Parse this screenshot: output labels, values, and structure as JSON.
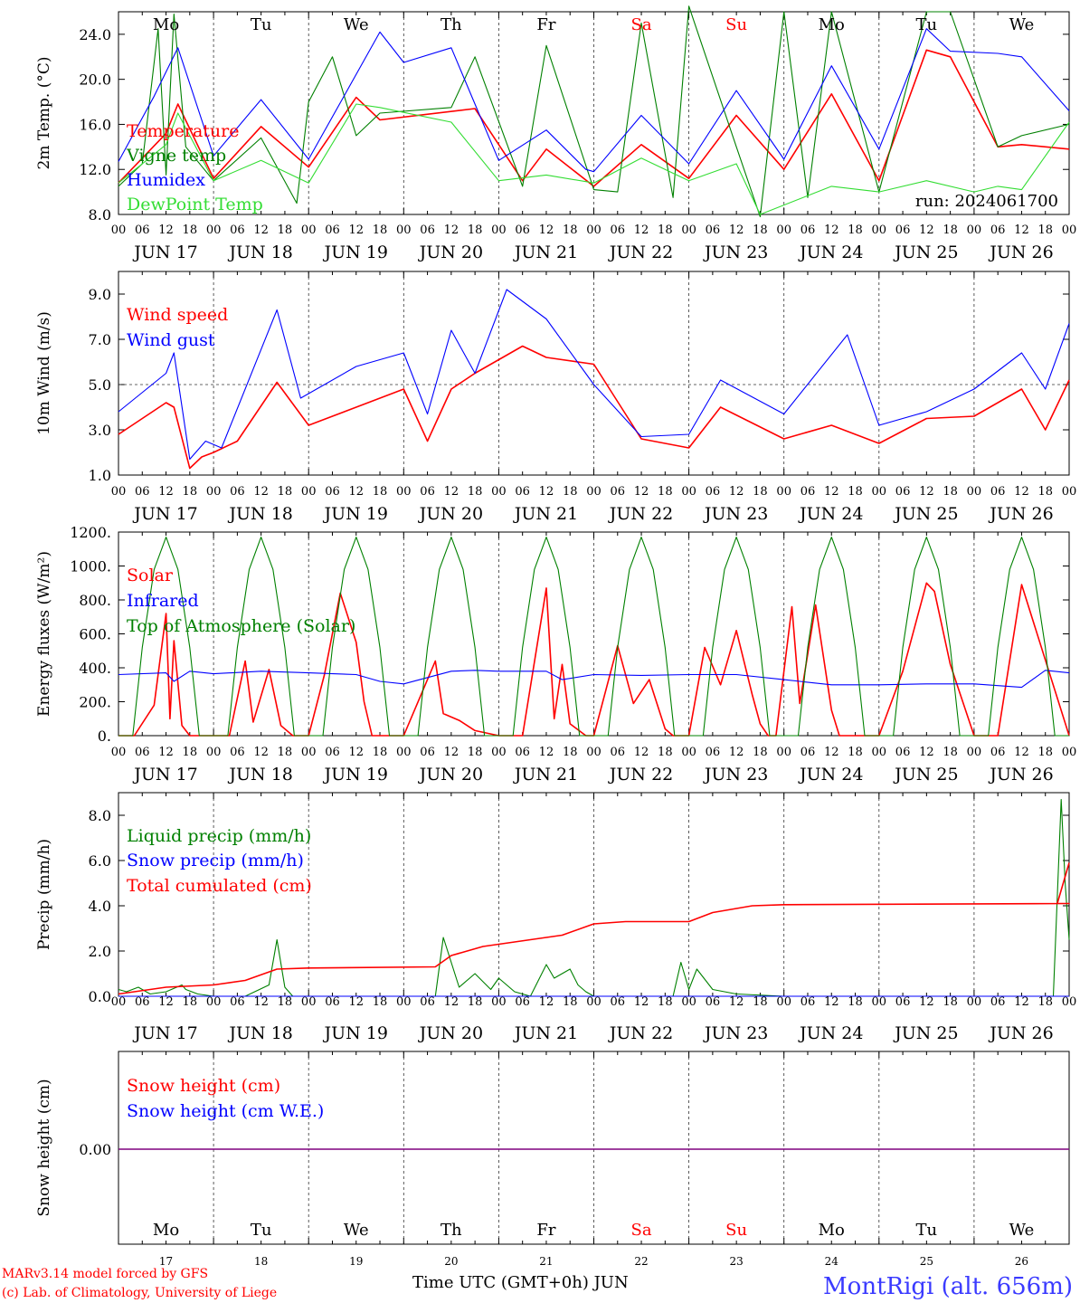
{
  "colors": {
    "red": "#ff0000",
    "green": "#008000",
    "blue": "#0000ff",
    "lightgreen": "#33dd33",
    "purple": "#7f007f",
    "gray": "#555555"
  },
  "days": {
    "dates": [
      "JUN 17",
      "JUN 18",
      "JUN 19",
      "JUN 20",
      "JUN 21",
      "JUN 22",
      "JUN 23",
      "JUN 24",
      "JUN 25",
      "JUN 26"
    ],
    "names": [
      "Mo",
      "Tu",
      "We",
      "Th",
      "Fr",
      "Sa",
      "Su",
      "Mo",
      "Tu",
      "We"
    ],
    "weekend": [
      false,
      false,
      false,
      false,
      false,
      true,
      true,
      false,
      false,
      false
    ],
    "numbers": [
      "17",
      "18",
      "19",
      "20",
      "21",
      "22",
      "23",
      "24",
      "25",
      "26"
    ],
    "hour_ticks": [
      "00",
      "06",
      "12",
      "18"
    ],
    "final_tick": "00"
  },
  "footer": {
    "model": "MARv3.14 model forced by GFS",
    "lab": "(c) Lab. of Climatology, University of Liege",
    "time_label": "Time UTC (GMT+0h) JUN",
    "station": "MontRigi (alt. 656m)"
  },
  "chart_data": [
    {
      "type": "line",
      "ylabel": "2m Temp. (°C)",
      "ylim": [
        8,
        26
      ],
      "yticks": [
        "8.0",
        "12.0",
        "16.0",
        "20.0",
        "24.0"
      ],
      "ytick_values": [
        8,
        12,
        16,
        20,
        24
      ],
      "annotation": "run: 2024061700",
      "grid": "vertical dashed lines at day boundaries",
      "legend_placement": "left",
      "series": [
        {
          "name": "Temperature",
          "color": "red",
          "x_hours": [
            0,
            12,
            15,
            24,
            36,
            48,
            60,
            66,
            90,
            102,
            108,
            120,
            132,
            144,
            156,
            168,
            180,
            192,
            204,
            210,
            222,
            228,
            240
          ],
          "values": [
            10.8,
            15.2,
            17.8,
            11.2,
            15.8,
            12.2,
            18.4,
            16.4,
            17.4,
            11.0,
            13.8,
            10.5,
            14.2,
            11.2,
            16.8,
            12.0,
            18.7,
            11.0,
            22.6,
            22.0,
            14.0,
            14.2,
            13.8
          ]
        },
        {
          "name": "Vigne temp",
          "color": "green",
          "x_hours": [
            0,
            6,
            10,
            12,
            14,
            17,
            24,
            36,
            45,
            48,
            54,
            60,
            66,
            84,
            90,
            102,
            108,
            120,
            126,
            132,
            140,
            144,
            156,
            162,
            168,
            174,
            180,
            192,
            204,
            210,
            222,
            228,
            240
          ],
          "values": [
            10.5,
            12.5,
            24.5,
            11.5,
            25.8,
            14.0,
            11.0,
            14.8,
            9.0,
            18.0,
            22.0,
            15.0,
            17.0,
            17.5,
            22.0,
            10.5,
            23.0,
            10.2,
            10.0,
            25.0,
            9.5,
            26.5,
            14.0,
            7.8,
            26.0,
            9.5,
            26.0,
            10.0,
            26.0,
            26.0,
            14.0,
            15.0,
            16.0
          ]
        },
        {
          "name": "Humidex",
          "color": "blue",
          "x_hours": [
            0,
            9,
            15,
            24,
            36,
            48,
            66,
            72,
            84,
            90,
            96,
            108,
            118,
            120,
            132,
            144,
            156,
            168,
            180,
            192,
            204,
            210,
            222,
            228,
            240
          ],
          "values": [
            12.7,
            18.5,
            22.8,
            13.2,
            18.2,
            12.9,
            24.2,
            21.5,
            22.8,
            17.8,
            12.8,
            15.5,
            12.0,
            11.8,
            16.8,
            12.5,
            19.0,
            12.9,
            21.2,
            13.8,
            24.5,
            22.5,
            22.3,
            22.0,
            17.2
          ]
        },
        {
          "name": "DewPoint Temp",
          "color": "lightgreen",
          "x_hours": [
            0,
            12,
            15,
            24,
            36,
            48,
            60,
            66,
            84,
            96,
            108,
            120,
            132,
            144,
            156,
            162,
            180,
            192,
            204,
            216,
            222,
            228,
            240
          ],
          "values": [
            10.8,
            14.2,
            17.0,
            11.0,
            12.8,
            10.8,
            17.8,
            17.5,
            16.2,
            11.0,
            11.5,
            10.8,
            13.0,
            11.0,
            12.5,
            8.0,
            10.5,
            10.0,
            11.0,
            10.0,
            10.5,
            10.2,
            16.2
          ]
        }
      ]
    },
    {
      "type": "line",
      "ylabel": "10m Wind (m/s)",
      "ylim": [
        1,
        10
      ],
      "yticks": [
        "1.0",
        "3.0",
        "5.0",
        "7.0",
        "9.0"
      ],
      "ytick_values": [
        1,
        3,
        5,
        7,
        9
      ],
      "reference_line": 5.0,
      "legend_placement": "left",
      "series": [
        {
          "name": "Wind speed",
          "color": "red",
          "x_hours": [
            0,
            12,
            14,
            18,
            21,
            24,
            30,
            40,
            48,
            60,
            72,
            78,
            84,
            90,
            102,
            108,
            120,
            132,
            144,
            152,
            168,
            180,
            192,
            204,
            216,
            228,
            234,
            240
          ],
          "values": [
            2.8,
            4.2,
            4.0,
            1.3,
            1.8,
            2.0,
            2.5,
            5.1,
            3.2,
            4.0,
            4.8,
            2.5,
            4.8,
            5.5,
            6.7,
            6.2,
            5.9,
            2.6,
            2.2,
            4.0,
            2.6,
            3.2,
            2.4,
            3.5,
            3.6,
            4.8,
            3.0,
            5.2
          ]
        },
        {
          "name": "Wind gust",
          "color": "blue",
          "x_hours": [
            0,
            12,
            14,
            18,
            22,
            26,
            40,
            46,
            60,
            72,
            78,
            84,
            90,
            98,
            108,
            120,
            132,
            144,
            152,
            168,
            184,
            192,
            204,
            216,
            228,
            234,
            240
          ],
          "values": [
            3.8,
            5.5,
            6.4,
            1.7,
            2.5,
            2.2,
            8.3,
            4.4,
            5.8,
            6.4,
            3.7,
            7.4,
            5.5,
            9.2,
            7.9,
            5.0,
            2.7,
            2.8,
            5.2,
            3.7,
            7.2,
            3.2,
            3.8,
            4.8,
            6.4,
            4.8,
            7.7
          ]
        }
      ]
    },
    {
      "type": "line",
      "ylabel": "Energy fluxes (W/m²)",
      "ylim": [
        0,
        1200
      ],
      "yticks": [
        "0.",
        "200.",
        "400.",
        "600.",
        "800.",
        "1000.",
        "1200."
      ],
      "ytick_values": [
        0,
        200,
        400,
        600,
        800,
        1000,
        1200
      ],
      "legend_placement": "left",
      "series": [
        {
          "name": "Solar",
          "color": "red",
          "x_hours": [
            0,
            4,
            9,
            12,
            13,
            14,
            16,
            18,
            20,
            28,
            32,
            34,
            38,
            41,
            44,
            48,
            52,
            56,
            60,
            62,
            64,
            68,
            72,
            80,
            82,
            86,
            90,
            96,
            102,
            108,
            110,
            112,
            114,
            118,
            120,
            126,
            130,
            134,
            138,
            140,
            144,
            148,
            152,
            156,
            160,
            162,
            164,
            166,
            170,
            172,
            176,
            180,
            182,
            186,
            192,
            198,
            204,
            206,
            210,
            216,
            222,
            228,
            240
          ],
          "values": [
            0,
            0,
            180,
            720,
            100,
            560,
            60,
            0,
            0,
            0,
            440,
            80,
            390,
            60,
            0,
            0,
            360,
            840,
            550,
            200,
            0,
            0,
            0,
            440,
            130,
            90,
            30,
            0,
            0,
            870,
            100,
            420,
            70,
            0,
            0,
            530,
            190,
            330,
            40,
            0,
            0,
            520,
            300,
            620,
            240,
            70,
            0,
            0,
            760,
            190,
            770,
            150,
            0,
            0,
            0,
            380,
            900,
            850,
            420,
            0,
            0,
            890,
            0
          ]
        },
        {
          "name": "Infrared",
          "color": "blue",
          "x_hours": [
            0,
            12,
            14,
            18,
            24,
            36,
            48,
            60,
            66,
            72,
            84,
            90,
            96,
            108,
            112,
            120,
            132,
            144,
            156,
            168,
            180,
            192,
            204,
            216,
            228,
            234,
            240
          ],
          "values": [
            360,
            370,
            320,
            380,
            365,
            380,
            370,
            360,
            320,
            305,
            380,
            385,
            380,
            380,
            330,
            360,
            355,
            360,
            360,
            330,
            300,
            300,
            305,
            305,
            285,
            385,
            370
          ]
        },
        {
          "name": "Top of Atmosphere (Solar)",
          "color": "green",
          "x_hours": [
            0,
            3.6,
            6,
            9,
            12,
            15,
            18,
            20.4,
            24
          ],
          "values": [
            0,
            0,
            520,
            980,
            1170,
            980,
            520,
            0,
            0
          ],
          "repeats_daily": true
        }
      ]
    },
    {
      "type": "line",
      "ylabel": "Precip (mm/h)",
      "ylim": [
        0,
        9
      ],
      "yticks": [
        "0.0",
        "2.0",
        "4.0",
        "6.0",
        "8.0"
      ],
      "ytick_values": [
        0,
        2,
        4,
        6,
        8
      ],
      "legend_placement": "left",
      "series": [
        {
          "name": "Liquid precip (mm/h)",
          "color": "green",
          "x_hours": [
            0,
            2,
            5,
            8,
            12,
            16,
            17,
            20,
            24,
            32,
            38,
            40,
            42,
            44,
            48,
            60,
            72,
            80,
            82,
            86,
            90,
            94,
            96,
            100,
            104,
            108,
            110,
            114,
            116,
            118,
            120,
            140,
            142,
            144,
            146,
            150,
            156,
            168,
            180,
            192,
            204,
            216,
            228,
            236,
            238,
            239,
            240
          ],
          "values": [
            0.3,
            0.2,
            0.4,
            0.1,
            0.2,
            0.5,
            0.3,
            0.1,
            0.0,
            0.0,
            0.5,
            2.5,
            0.4,
            0.0,
            0.0,
            0.0,
            0.0,
            0.0,
            2.6,
            0.4,
            1.0,
            0.3,
            0.8,
            0.2,
            0.0,
            1.4,
            0.8,
            1.2,
            0.5,
            0.2,
            0.0,
            0.0,
            1.5,
            0.3,
            1.2,
            0.3,
            0.1,
            0.0,
            0.0,
            0.0,
            0.0,
            0.0,
            0.0,
            0.0,
            8.7,
            5.0,
            2.5
          ]
        },
        {
          "name": "Snow precip (mm/h)",
          "color": "blue",
          "x_hours": [
            0,
            240
          ],
          "values": [
            0.0,
            0.0
          ]
        },
        {
          "name": "Total cumulated (cm)",
          "color": "red",
          "x_hours": [
            0,
            12,
            24,
            32,
            40,
            48,
            80,
            84,
            92,
            100,
            112,
            120,
            128,
            144,
            150,
            160,
            168,
            240,
            237,
            240
          ],
          "values": [
            0.1,
            0.4,
            0.5,
            0.7,
            1.2,
            1.25,
            1.3,
            1.8,
            2.2,
            2.4,
            2.7,
            3.2,
            3.3,
            3.3,
            3.7,
            4.0,
            4.05,
            4.1,
            4.1,
            5.9
          ]
        }
      ]
    },
    {
      "type": "line",
      "ylabel": "Snow height (cm)",
      "yticks": [
        "0.00"
      ],
      "ytick_values": [
        0
      ],
      "legend_placement": "left",
      "series": [
        {
          "name": "Snow height (cm)",
          "color": "red",
          "x_hours": [
            0,
            240
          ],
          "values": [
            0,
            0
          ]
        },
        {
          "name": "Snow height (cm W.E.)",
          "color": "blue",
          "x_hours": [
            0,
            240
          ],
          "values": [
            0,
            0
          ]
        }
      ]
    }
  ]
}
